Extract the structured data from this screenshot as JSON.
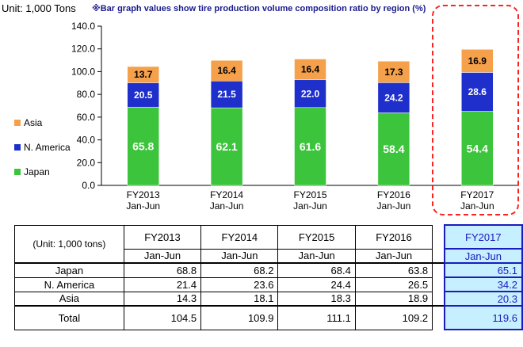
{
  "header": {
    "unit": "Unit: 1,000 Tons",
    "note": "※Bar graph values show tire production volume composition ratio by region (%)"
  },
  "colors": {
    "japan": "#3cc43c",
    "n_america": "#1e2fcc",
    "asia": "#f5a04a",
    "highlight_box": "#ff2222",
    "highlight_fill": "#c6efff"
  },
  "chart_data": {
    "type": "bar",
    "stacked": true,
    "categories": [
      "FY2013\nJan-Jun",
      "FY2014\nJan-Jun",
      "FY2015\nJan-Jun",
      "FY2016\nJan-Jun",
      "FY2017\nJan-Jun"
    ],
    "category_lines": [
      [
        "FY2013",
        "Jan-Jun"
      ],
      [
        "FY2014",
        "Jan-Jun"
      ],
      [
        "FY2015",
        "Jan-Jun"
      ],
      [
        "FY2016",
        "Jan-Jun"
      ],
      [
        "FY2017",
        "Jan-Jun"
      ]
    ],
    "series": [
      {
        "name": "Japan",
        "values": [
          68.8,
          68.2,
          68.4,
          63.8,
          65.1
        ],
        "labels": [
          "65.8",
          "62.1",
          "61.6",
          "58.4",
          "54.4"
        ]
      },
      {
        "name": "N. America",
        "values": [
          21.4,
          23.6,
          24.4,
          26.5,
          34.2
        ],
        "labels": [
          "20.5",
          "21.5",
          "22.0",
          "24.2",
          "28.6"
        ]
      },
      {
        "name": "Asia",
        "values": [
          14.3,
          18.1,
          18.3,
          18.9,
          20.3
        ],
        "labels": [
          "13.7",
          "16.4",
          "16.4",
          "17.3",
          "16.9"
        ]
      }
    ],
    "ylim": [
      0,
      140
    ],
    "yticks": [
      "0.0",
      "20.0",
      "40.0",
      "60.0",
      "80.0",
      "100.0",
      "120.0",
      "140.0"
    ],
    "legend": [
      "Asia",
      "N. America",
      "Japan"
    ],
    "legend_position": "left"
  },
  "table": {
    "unit_label": "(Unit: 1,000 tons)",
    "years": [
      "FY2013",
      "FY2014",
      "FY2015",
      "FY2016"
    ],
    "highlight_year": "FY2017",
    "period": "Jan-Jun",
    "rows": [
      {
        "label": "Japan",
        "values": [
          "68.8",
          "68.2",
          "68.4",
          "63.8"
        ],
        "highlight": "65.1"
      },
      {
        "label": "N. America",
        "values": [
          "21.4",
          "23.6",
          "24.4",
          "26.5"
        ],
        "highlight": "34.2"
      },
      {
        "label": "Asia",
        "values": [
          "14.3",
          "18.1",
          "18.3",
          "18.9"
        ],
        "highlight": "20.3"
      }
    ],
    "total": {
      "label": "Total",
      "values": [
        "104.5",
        "109.9",
        "111.1",
        "109.2"
      ],
      "highlight": "119.6"
    }
  }
}
